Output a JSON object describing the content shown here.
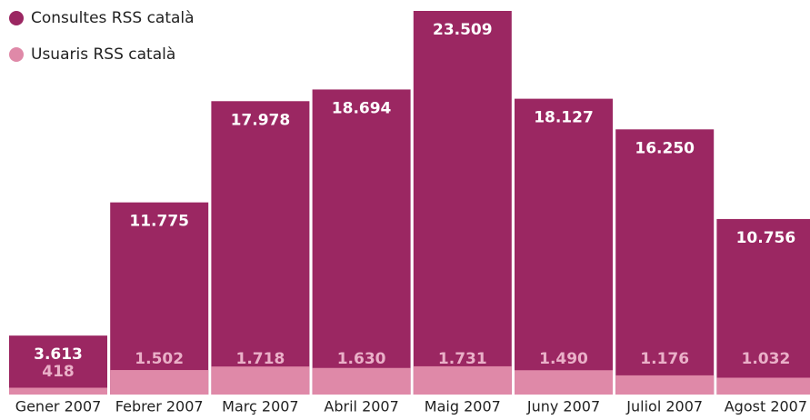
{
  "chart_data": {
    "type": "overlap-bar",
    "categories": [
      "Gener 2007",
      "Febrer 2007",
      "Març 2007",
      "Abril 2007",
      "Maig 2007",
      "Juny 2007",
      "Juliol 2007",
      "Agost 2007"
    ],
    "series": [
      {
        "name": "Consultes RSS català",
        "color": "#9b2762",
        "values": [
          3613,
          11775,
          17978,
          18694,
          23509,
          18127,
          16250,
          10756
        ],
        "value_labels": [
          "3.613",
          "11.775",
          "17.978",
          "18.694",
          "23.509",
          "18.127",
          "16.250",
          "10.756"
        ]
      },
      {
        "name": "Usuaris RSS català",
        "color": "#df89a8",
        "values": [
          418,
          1502,
          1718,
          1630,
          1731,
          1490,
          1176,
          1032
        ],
        "value_labels": [
          "418",
          "1.502",
          "1.718",
          "1.630",
          "1.731",
          "1.490",
          "1.176",
          "1.032"
        ]
      }
    ]
  }
}
